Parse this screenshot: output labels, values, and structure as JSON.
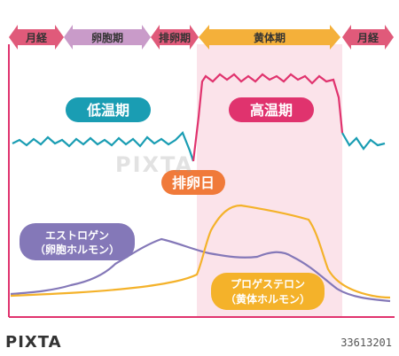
{
  "phases": [
    {
      "label": "月経",
      "color": "#e05a7a"
    },
    {
      "label": "卵胞期",
      "color": "#c99bc9"
    },
    {
      "label": "排卵期",
      "color": "#e05a7a"
    },
    {
      "label": "黄体期",
      "color": "#f4b03a"
    },
    {
      "label": "月経",
      "color": "#e05a7a"
    }
  ],
  "labels": {
    "low_temp": "低温期",
    "high_temp": "高温期",
    "ovulation_day": "排卵日",
    "estrogen_line1": "エストロゲン",
    "estrogen_line2": "（卵胞ホルモン）",
    "progesterone_line1": "プロゲステロン",
    "progesterone_line2": "（黄体ホルモン）"
  },
  "colors": {
    "low_temp": "#1a9db3",
    "high_temp": "#e0336e",
    "ovulation": "#f07a3a",
    "estrogen": "#8478b8",
    "progesterone": "#f4b22a",
    "luteal_band": "#fbe3ea",
    "axis": "#e0336e"
  },
  "watermark": "PIXTA",
  "footer": {
    "brand": "PIXTA",
    "id": "33613201"
  }
}
